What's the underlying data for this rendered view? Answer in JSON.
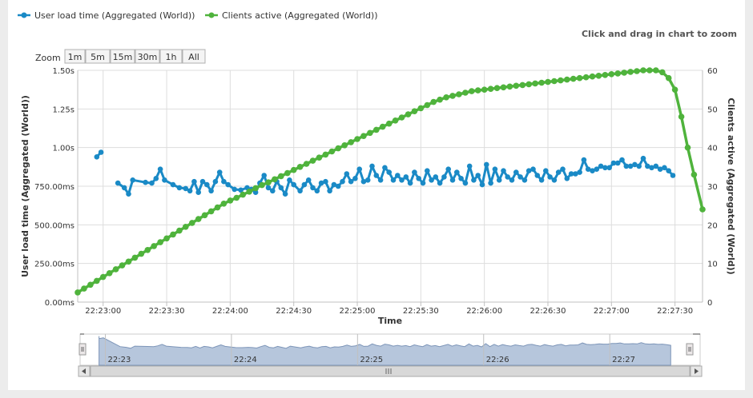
{
  "hint": "Click and drag in chart to zoom",
  "zoom": {
    "label": "Zoom",
    "buttons": [
      "1m",
      "5m",
      "15m",
      "30m",
      "1h",
      "All"
    ]
  },
  "colors": {
    "load_series": "#1a8ac6",
    "clients_series": "#4fb33c",
    "navigator_fill": "#b6c6dc",
    "navigator_line": "#7d95b8",
    "grid": "#dddddd"
  },
  "chart_data": {
    "type": "line",
    "xlabel": "Time",
    "ylabel_left": "User load time (Aggregated (World))",
    "ylabel_right": "Clients active (Aggregated (World))",
    "ylim_left": [
      0,
      1500
    ],
    "ylim_right": [
      0,
      60
    ],
    "left_ticks": [
      "0.00ms",
      "250.00ms",
      "500.00ms",
      "750.00ms",
      "1.00s",
      "1.25s",
      "1.50s"
    ],
    "right_ticks": [
      "0",
      "10",
      "20",
      "30",
      "40",
      "50",
      "60"
    ],
    "x_tick_labels": [
      "22:23:00",
      "22:23:30",
      "22:24:00",
      "22:24:30",
      "22:25:00",
      "22:25:30",
      "22:26:00",
      "22:26:30",
      "22:27:00",
      "22:27:30"
    ],
    "x_tick_seconds": [
      0,
      30,
      60,
      90,
      120,
      150,
      180,
      210,
      240,
      270
    ],
    "x_range_seconds": [
      -12,
      283
    ],
    "grid": true,
    "legend_position": "top-left",
    "series": [
      {
        "name": "User load time (Aggregated (World))",
        "axis": "left",
        "unit": "ms",
        "segments": [
          [
            [
              -3,
              940
            ],
            [
              -1,
              970
            ]
          ],
          [
            [
              7,
              770
            ],
            [
              10,
              740
            ],
            [
              12,
              700
            ],
            [
              14,
              790
            ],
            [
              20,
              775
            ],
            [
              23,
              770
            ],
            [
              25,
              800
            ],
            [
              27,
              860
            ],
            [
              29,
              790
            ],
            [
              33,
              760
            ],
            [
              36,
              740
            ],
            [
              39,
              735
            ],
            [
              41,
              720
            ],
            [
              43,
              780
            ],
            [
              45,
              710
            ],
            [
              47,
              780
            ],
            [
              49,
              760
            ],
            [
              51,
              720
            ],
            [
              53,
              780
            ],
            [
              55,
              840
            ],
            [
              57,
              780
            ],
            [
              59,
              760
            ],
            [
              62,
              730
            ],
            [
              65,
              725
            ],
            [
              68,
              740
            ],
            [
              70,
              730
            ],
            [
              72,
              710
            ],
            [
              74,
              770
            ],
            [
              76,
              820
            ],
            [
              78,
              740
            ],
            [
              80,
              720
            ],
            [
              82,
              780
            ],
            [
              84,
              740
            ],
            [
              86,
              700
            ],
            [
              88,
              790
            ],
            [
              90,
              760
            ],
            [
              93,
              720
            ],
            [
              95,
              760
            ],
            [
              97,
              790
            ],
            [
              99,
              740
            ],
            [
              101,
              720
            ],
            [
              103,
              770
            ],
            [
              105,
              780
            ],
            [
              107,
              720
            ],
            [
              109,
              760
            ],
            [
              111,
              750
            ],
            [
              113,
              780
            ],
            [
              115,
              830
            ],
            [
              117,
              780
            ],
            [
              119,
              800
            ],
            [
              121,
              860
            ],
            [
              123,
              780
            ],
            [
              125,
              790
            ],
            [
              127,
              880
            ],
            [
              129,
              820
            ],
            [
              131,
              790
            ],
            [
              133,
              870
            ],
            [
              135,
              840
            ],
            [
              137,
              790
            ],
            [
              139,
              820
            ],
            [
              141,
              790
            ],
            [
              143,
              810
            ],
            [
              145,
              770
            ],
            [
              147,
              840
            ],
            [
              149,
              800
            ],
            [
              151,
              770
            ],
            [
              153,
              850
            ],
            [
              155,
              790
            ],
            [
              157,
              810
            ],
            [
              159,
              770
            ],
            [
              161,
              810
            ],
            [
              163,
              860
            ],
            [
              165,
              790
            ],
            [
              167,
              840
            ],
            [
              169,
              800
            ],
            [
              171,
              770
            ],
            [
              173,
              880
            ],
            [
              175,
              790
            ],
            [
              177,
              820
            ],
            [
              179,
              760
            ],
            [
              181,
              890
            ],
            [
              183,
              770
            ],
            [
              185,
              860
            ],
            [
              187,
              790
            ],
            [
              189,
              850
            ],
            [
              191,
              810
            ],
            [
              193,
              790
            ],
            [
              195,
              840
            ],
            [
              197,
              810
            ],
            [
              199,
              790
            ],
            [
              201,
              850
            ],
            [
              203,
              860
            ],
            [
              205,
              820
            ],
            [
              207,
              790
            ],
            [
              209,
              850
            ],
            [
              211,
              810
            ],
            [
              213,
              790
            ],
            [
              215,
              840
            ],
            [
              217,
              860
            ],
            [
              219,
              800
            ],
            [
              221,
              830
            ],
            [
              223,
              830
            ],
            [
              225,
              840
            ],
            [
              227,
              920
            ],
            [
              229,
              860
            ],
            [
              231,
              850
            ],
            [
              233,
              860
            ],
            [
              235,
              880
            ],
            [
              237,
              870
            ],
            [
              239,
              870
            ],
            [
              241,
              900
            ],
            [
              243,
              900
            ],
            [
              245,
              920
            ],
            [
              247,
              880
            ],
            [
              249,
              880
            ],
            [
              251,
              890
            ],
            [
              253,
              880
            ],
            [
              255,
              930
            ],
            [
              257,
              880
            ],
            [
              259,
              870
            ],
            [
              261,
              880
            ],
            [
              263,
              860
            ],
            [
              265,
              870
            ],
            [
              267,
              850
            ],
            [
              269,
              820
            ]
          ]
        ]
      },
      {
        "name": "Clients active (Aggregated (World))",
        "axis": "right",
        "unit": "clients",
        "segments": [
          [
            [
              -12,
              2.5
            ],
            [
              -9,
              3.5
            ],
            [
              -6,
              4.5
            ],
            [
              -3,
              5.5
            ],
            [
              0,
              6.5
            ],
            [
              3,
              7.5
            ],
            [
              6,
              8.5
            ],
            [
              9,
              9.5
            ],
            [
              12,
              10.5
            ],
            [
              15,
              11.5
            ],
            [
              18,
              12.5
            ],
            [
              21,
              13.5
            ],
            [
              24,
              14.5
            ],
            [
              27,
              15.5
            ],
            [
              30,
              16.5
            ],
            [
              33,
              17.5
            ],
            [
              36,
              18.5
            ],
            [
              39,
              19.5
            ],
            [
              42,
              20.5
            ],
            [
              45,
              21.5
            ],
            [
              48,
              22.5
            ],
            [
              51,
              23.5
            ],
            [
              54,
              24.5
            ],
            [
              57,
              25.5
            ],
            [
              60,
              26.3
            ],
            [
              63,
              27.0
            ],
            [
              66,
              27.8
            ],
            [
              69,
              28.6
            ],
            [
              72,
              29.5
            ],
            [
              75,
              30.3
            ],
            [
              78,
              31.0
            ],
            [
              81,
              31.8
            ],
            [
              84,
              32.6
            ],
            [
              87,
              33.4
            ],
            [
              90,
              34.2
            ],
            [
              93,
              35.0
            ],
            [
              96,
              35.8
            ],
            [
              99,
              36.6
            ],
            [
              102,
              37.4
            ],
            [
              105,
              38.2
            ],
            [
              108,
              39.0
            ],
            [
              111,
              39.8
            ],
            [
              114,
              40.6
            ],
            [
              117,
              41.4
            ],
            [
              120,
              42.2
            ],
            [
              123,
              43.0
            ],
            [
              126,
              43.8
            ],
            [
              129,
              44.6
            ],
            [
              132,
              45.4
            ],
            [
              135,
              46.2
            ],
            [
              138,
              47.0
            ],
            [
              141,
              47.8
            ],
            [
              144,
              48.6
            ],
            [
              147,
              49.4
            ],
            [
              150,
              50.2
            ],
            [
              153,
              51.0
            ],
            [
              156,
              51.8
            ],
            [
              159,
              52.4
            ],
            [
              162,
              53.0
            ],
            [
              165,
              53.4
            ],
            [
              168,
              53.8
            ],
            [
              171,
              54.2
            ],
            [
              174,
              54.6
            ],
            [
              177,
              54.8
            ],
            [
              180,
              55.0
            ],
            [
              183,
              55.2
            ],
            [
              186,
              55.4
            ],
            [
              189,
              55.6
            ],
            [
              192,
              55.8
            ],
            [
              195,
              56.0
            ],
            [
              198,
              56.2
            ],
            [
              201,
              56.4
            ],
            [
              204,
              56.6
            ],
            [
              207,
              56.8
            ],
            [
              210,
              57.0
            ],
            [
              213,
              57.2
            ],
            [
              216,
              57.4
            ],
            [
              219,
              57.6
            ],
            [
              222,
              57.8
            ],
            [
              225,
              58.0
            ],
            [
              228,
              58.2
            ],
            [
              231,
              58.4
            ],
            [
              234,
              58.6
            ],
            [
              237,
              58.8
            ],
            [
              240,
              59.0
            ],
            [
              243,
              59.2
            ],
            [
              246,
              59.4
            ],
            [
              249,
              59.6
            ],
            [
              252,
              59.8
            ],
            [
              255,
              60.0
            ],
            [
              258,
              60.0
            ],
            [
              261,
              60.0
            ],
            [
              264,
              59.5
            ],
            [
              267,
              58.0
            ],
            [
              270,
              55.0
            ],
            [
              273,
              48.0
            ],
            [
              276,
              40.0
            ],
            [
              279,
              33.0
            ],
            [
              283,
              24.0
            ]
          ]
        ]
      }
    ],
    "navigator": {
      "labels": [
        "22:23",
        "22:24",
        "22:25",
        "22:26",
        "22:27"
      ],
      "label_seconds": [
        0,
        60,
        120,
        180,
        240
      ],
      "range_seconds": [
        -12,
        283
      ]
    }
  }
}
